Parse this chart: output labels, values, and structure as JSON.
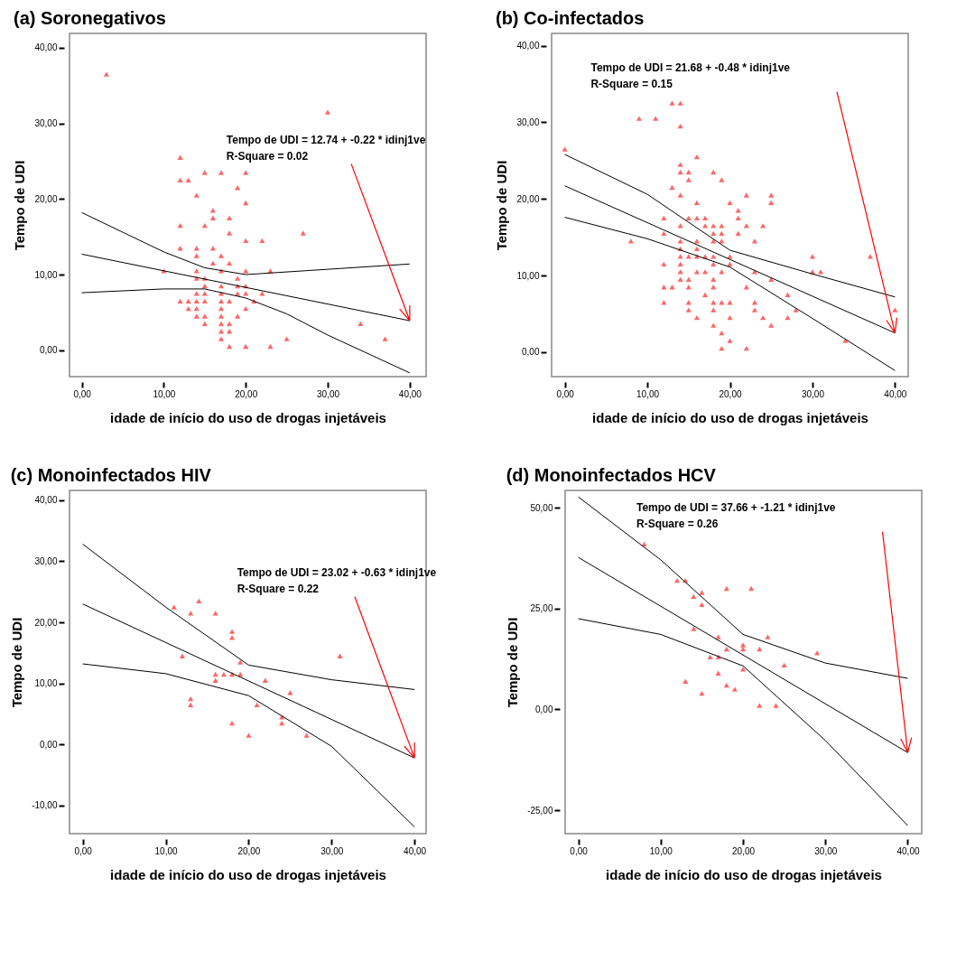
{
  "chart_data": [
    {
      "type": "scatter",
      "title": "(a) Soronegativos",
      "xlabel": "idade de início do uso de drogas injetáveis",
      "ylabel": "Tempo de UDI",
      "annotations": [
        "Tempo de UDI = 12.74 + -0.22 * idinj1ve",
        "R-Square = 0.02"
      ],
      "xlim": [
        -1.5,
        42
      ],
      "ylim": [
        -3.5,
        41.9
      ],
      "xticks": [
        {
          "value": 0,
          "label": "0,00"
        },
        {
          "value": 10,
          "label": "10,00"
        },
        {
          "value": 20,
          "label": "20,00"
        },
        {
          "value": 30,
          "label": "30,00"
        },
        {
          "value": 40,
          "label": "40,00"
        }
      ],
      "yticks": [
        {
          "value": 0,
          "label": "0,00"
        },
        {
          "value": 10,
          "label": "10,00"
        },
        {
          "value": 20,
          "label": "20,00"
        },
        {
          "value": 30,
          "label": "30,00"
        },
        {
          "value": 40,
          "label": "40,00"
        }
      ],
      "series": [
        {
          "marker": "triangle",
          "color": "#ff6666",
          "x": [
            3,
            30,
            12,
            15,
            17,
            20,
            12,
            13,
            19,
            14,
            20,
            16,
            16,
            18,
            12,
            15,
            18,
            27,
            20,
            22,
            12,
            14,
            16,
            14,
            17,
            16,
            18,
            10,
            14,
            17,
            20,
            23,
            14,
            15,
            19,
            15,
            17,
            19,
            20,
            14,
            15,
            17,
            19,
            20,
            22,
            12,
            13,
            14,
            15,
            17,
            18,
            21,
            13,
            14,
            17,
            20,
            14,
            15,
            17,
            19,
            15,
            17,
            18,
            34,
            17,
            18,
            17,
            25,
            37,
            18,
            20,
            23
          ],
          "values": [
            36.5,
            31.5,
            25.5,
            23.5,
            23.5,
            23.5,
            22.5,
            22.5,
            21.5,
            20.5,
            19.5,
            18.5,
            17.5,
            17.5,
            16.5,
            16.5,
            15.5,
            15.5,
            14.5,
            14.5,
            13.5,
            13.5,
            13.5,
            12.5,
            12.5,
            11.5,
            11.5,
            10.5,
            10.5,
            10.5,
            10.5,
            10.5,
            9.5,
            9.5,
            9.5,
            8.5,
            8.5,
            8.5,
            8.5,
            7.5,
            7.5,
            7.5,
            7.5,
            7.5,
            7.5,
            6.5,
            6.5,
            6.5,
            6.5,
            6.5,
            6.5,
            6.5,
            5.5,
            5.5,
            5.5,
            5.5,
            4.5,
            4.5,
            4.5,
            4.5,
            3.5,
            3.5,
            3.5,
            3.5,
            2.5,
            2.5,
            1.5,
            1.5,
            1.5,
            0.5,
            0.5,
            0.5
          ]
        },
        {
          "type": "line",
          "marker": "none",
          "color": "#000000",
          "x": [
            0,
            40
          ],
          "values": [
            12.7,
            3.9
          ]
        },
        {
          "type": "line",
          "color": "#000000",
          "x": [
            0,
            10,
            15,
            20,
            30,
            40
          ],
          "values": [
            18.2,
            13.0,
            10.9,
            10.0,
            10.7,
            11.4
          ]
        },
        {
          "type": "line",
          "color": "#000000",
          "x": [
            0,
            10,
            15,
            20,
            25,
            30,
            40
          ],
          "values": [
            7.6,
            8.1,
            8.1,
            6.9,
            4.8,
            2.0,
            -3.0
          ]
        }
      ]
    },
    {
      "type": "scatter",
      "title": "(b) Co-infectados",
      "xlabel": "idade de início do uso de drogas injetáveis",
      "ylabel": "Tempo de UDI",
      "annotations": [
        "Tempo de UDI = 21.68 + -0.48 * idinj1ve",
        "R-Square = 0.15"
      ],
      "xlim": [
        -1.6,
        41.6
      ],
      "ylim": [
        -3.2,
        41.6
      ],
      "xticks": [
        {
          "value": 0,
          "label": "0,00"
        },
        {
          "value": 10,
          "label": "10,00"
        },
        {
          "value": 20,
          "label": "20,00"
        },
        {
          "value": 30,
          "label": "30,00"
        },
        {
          "value": 40,
          "label": "40,00"
        }
      ],
      "yticks": [
        {
          "value": 0,
          "label": "0,00"
        },
        {
          "value": 10,
          "label": "10,00"
        },
        {
          "value": 20,
          "label": "20,00"
        },
        {
          "value": 30,
          "label": "30,00"
        },
        {
          "value": 40,
          "label": "40,00"
        }
      ],
      "series": [
        {
          "marker": "triangle",
          "color": "#ff6666",
          "x": [
            0,
            13,
            14,
            9,
            11,
            14,
            16,
            14,
            14,
            15,
            18,
            15,
            19,
            13,
            14,
            22,
            25,
            16,
            20,
            25,
            21,
            12,
            15,
            16,
            17,
            21,
            14,
            17,
            18,
            19,
            22,
            24,
            12,
            18,
            19,
            21,
            8,
            14,
            16,
            18,
            19,
            23,
            14,
            16,
            14,
            15,
            16,
            17,
            18,
            20,
            30,
            37,
            12,
            14,
            18,
            20,
            14,
            16,
            17,
            19,
            23,
            30,
            31,
            14,
            15,
            18,
            25,
            12,
            13,
            15,
            18,
            22,
            17,
            27,
            12,
            15,
            18,
            19,
            20,
            23,
            15,
            18,
            23,
            28,
            40,
            16,
            20,
            24,
            27,
            18,
            25,
            19,
            20,
            34,
            19,
            22
          ],
          "values": [
            26.5,
            32.5,
            32.5,
            30.5,
            30.5,
            29.5,
            25.5,
            24.5,
            23.5,
            23.5,
            23.5,
            22.5,
            22.5,
            21.5,
            20.5,
            20.5,
            20.5,
            19.5,
            19.5,
            19.5,
            18.5,
            17.5,
            17.5,
            17.5,
            17.5,
            17.5,
            16.5,
            16.5,
            16.5,
            16.5,
            16.5,
            16.5,
            15.5,
            15.5,
            15.5,
            15.5,
            14.5,
            14.5,
            14.5,
            14.5,
            14.5,
            14.5,
            13.5,
            13.5,
            12.5,
            12.5,
            12.5,
            12.5,
            12.5,
            12.5,
            12.5,
            12.5,
            11.5,
            11.5,
            11.5,
            11.5,
            10.5,
            10.5,
            10.5,
            10.5,
            10.5,
            10.5,
            10.5,
            9.5,
            9.5,
            9.5,
            9.5,
            8.5,
            8.5,
            8.5,
            8.5,
            8.5,
            7.5,
            7.5,
            6.5,
            6.5,
            6.5,
            6.5,
            6.5,
            6.5,
            5.5,
            5.5,
            5.5,
            5.5,
            5.5,
            4.5,
            4.5,
            4.5,
            4.5,
            3.5,
            3.5,
            2.5,
            1.5,
            1.5,
            0.5,
            0.5
          ]
        },
        {
          "type": "line",
          "marker": "none",
          "color": "#000000",
          "x": [
            0,
            40
          ],
          "values": [
            21.7,
            2.5
          ]
        },
        {
          "type": "line",
          "color": "#000000",
          "x": [
            0,
            10,
            20,
            30,
            40
          ],
          "values": [
            25.8,
            20.6,
            13.3,
            10.2,
            7.2
          ]
        },
        {
          "type": "line",
          "color": "#000000",
          "x": [
            0,
            10,
            20,
            30,
            40
          ],
          "values": [
            17.6,
            14.8,
            11.1,
            4.4,
            -2.4
          ]
        }
      ]
    },
    {
      "type": "scatter",
      "title": "(c) Monoinfectados HIV",
      "xlabel": "idade de início do uso de drogas injetáveis",
      "ylabel": "Tempo de UDI",
      "annotations": [
        "Tempo de UDI = 23.02 + -0.63 * idinj1ve",
        "R-Square = 0.22"
      ],
      "xlim": [
        -1.6,
        41.4
      ],
      "ylim": [
        -14.6,
        41.6
      ],
      "xticks": [
        {
          "value": 0,
          "label": "0,00"
        },
        {
          "value": 10,
          "label": "10,00"
        },
        {
          "value": 20,
          "label": "20,00"
        },
        {
          "value": 30,
          "label": "30,00"
        },
        {
          "value": 40,
          "label": "40,00"
        }
      ],
      "yticks": [
        {
          "value": -10,
          "label": "-10,00"
        },
        {
          "value": 0,
          "label": "0,00"
        },
        {
          "value": 10,
          "label": "10,00"
        },
        {
          "value": 20,
          "label": "20,00"
        },
        {
          "value": 30,
          "label": "30,00"
        },
        {
          "value": 40,
          "label": "40,00"
        }
      ],
      "series": [
        {
          "marker": "triangle",
          "color": "#ff6666",
          "x": [
            11,
            14,
            13,
            16,
            18,
            18,
            12,
            31,
            19,
            16,
            17,
            18,
            19,
            16,
            22,
            25,
            13,
            13,
            21,
            24,
            24,
            18,
            20,
            27
          ],
          "values": [
            22.5,
            23.5,
            21.5,
            21.5,
            18.5,
            17.5,
            14.5,
            14.5,
            13.5,
            11.5,
            11.5,
            11.5,
            11.5,
            10.5,
            10.5,
            8.5,
            7.5,
            6.5,
            6.5,
            4.5,
            3.5,
            3.5,
            1.5,
            1.5
          ]
        },
        {
          "type": "line",
          "marker": "none",
          "color": "#000000",
          "x": [
            0,
            40
          ],
          "values": [
            23.0,
            -2.2
          ]
        },
        {
          "type": "line",
          "color": "#000000",
          "x": [
            0,
            10,
            20,
            30,
            40
          ],
          "values": [
            32.8,
            22.5,
            13.0,
            10.6,
            9.0
          ]
        },
        {
          "type": "line",
          "color": "#000000",
          "x": [
            0,
            10,
            20,
            30,
            40
          ],
          "values": [
            13.2,
            11.6,
            8.0,
            -0.3,
            -13.5
          ]
        }
      ]
    },
    {
      "type": "scatter",
      "title": "(d) Monoinfectados HCV",
      "xlabel": "idade de início do uso de drogas injetáveis",
      "ylabel": "Tempo de UDI",
      "annotations": [
        "Tempo de UDI = 37.66 + -1.21 * idinj1ve",
        "R-Square = 0.26"
      ],
      "xlim": [
        -1.6,
        41.7
      ],
      "ylim": [
        -30.8,
        54.3
      ],
      "xticks": [
        {
          "value": 0,
          "label": "0,00"
        },
        {
          "value": 10,
          "label": "10,00"
        },
        {
          "value": 20,
          "label": "20,00"
        },
        {
          "value": 30,
          "label": "30,00"
        },
        {
          "value": 40,
          "label": "40,00"
        }
      ],
      "yticks": [
        {
          "value": -25,
          "label": "-25,00"
        },
        {
          "value": 0,
          "label": "0,00"
        },
        {
          "value": 25,
          "label": "25,00"
        },
        {
          "value": 50,
          "label": "50,00"
        }
      ],
      "series": [
        {
          "marker": "triangle",
          "color": "#ff6666",
          "x": [
            8,
            12,
            13,
            14,
            15,
            15,
            18,
            21,
            14,
            17,
            23,
            20,
            20,
            18,
            22,
            29,
            16,
            17,
            25,
            20,
            17,
            13,
            18,
            19,
            15,
            22,
            24
          ],
          "values": [
            41,
            32,
            32,
            28,
            29,
            26,
            30,
            30,
            20,
            18,
            18,
            16,
            15,
            15,
            15,
            14,
            13,
            13,
            11,
            10,
            9,
            7,
            6,
            5,
            4,
            1,
            1
          ]
        },
        {
          "type": "line",
          "marker": "none",
          "color": "#000000",
          "x": [
            0,
            40
          ],
          "values": [
            37.7,
            -10.7
          ]
        },
        {
          "type": "line",
          "color": "#000000",
          "x": [
            0,
            10,
            20,
            30,
            40
          ],
          "values": [
            52.7,
            37.1,
            18.6,
            11.5,
            7.7
          ]
        },
        {
          "type": "line",
          "color": "#000000",
          "x": [
            0,
            10,
            20,
            30,
            40
          ],
          "values": [
            22.5,
            18.6,
            10.8,
            -7.7,
            -28.8
          ]
        }
      ]
    }
  ]
}
